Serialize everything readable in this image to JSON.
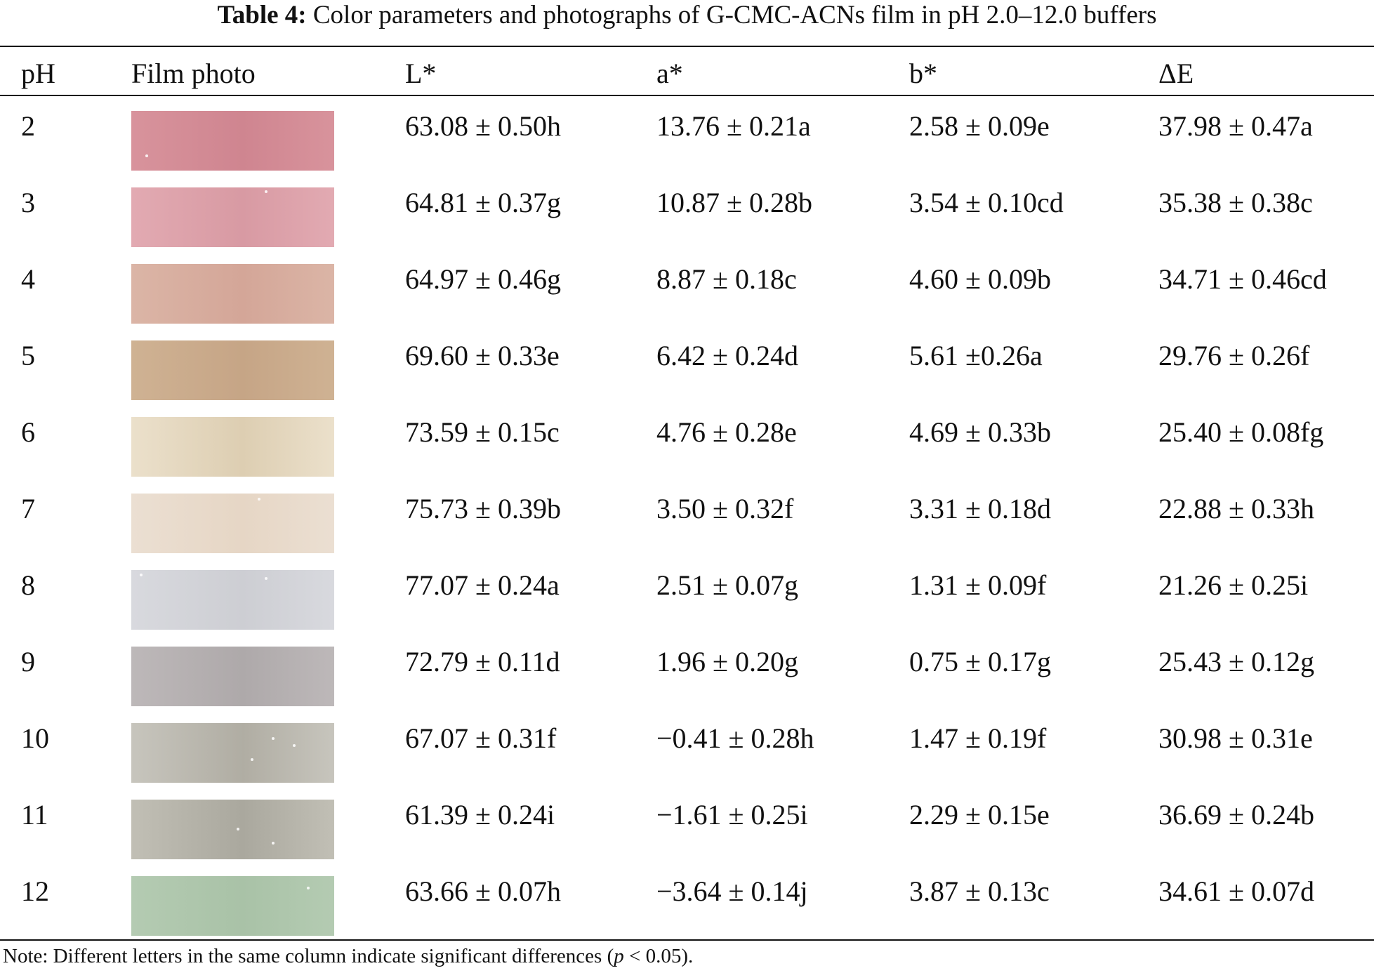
{
  "caption": {
    "label": "Table 4:",
    "text": "Color parameters and photographs of G-CMC-ACNs film in pH 2.0–12.0 buffers"
  },
  "headers": {
    "ph": "pH",
    "photo": "Film photo",
    "l": "L*",
    "a": "a*",
    "b": "b*",
    "de": "ΔE"
  },
  "rows": [
    {
      "ph": "2",
      "l": "63.08 ± 0.50h",
      "a": "13.76 ± 0.21a",
      "b": "2.58 ± 0.09e",
      "de": "37.98 ± 0.47a",
      "color": "#d8939c",
      "color2": "#cf8590"
    },
    {
      "ph": "3",
      "l": "64.81 ± 0.37g",
      "a": "10.87 ± 0.28b",
      "b": "3.54 ± 0.10cd",
      "de": "35.38 ± 0.38c",
      "color": "#e2aab2",
      "color2": "#d89aa3"
    },
    {
      "ph": "4",
      "l": "64.97 ± 0.46g",
      "a": "8.87 ± 0.18c",
      "b": "4.60 ± 0.09b",
      "de": "34.71 ± 0.46cd",
      "color": "#dbb5a6",
      "color2": "#d4a698"
    },
    {
      "ph": "5",
      "l": "69.60 ± 0.33e",
      "a": "6.42 ± 0.24d",
      "b": "5.61 ±0.26a",
      "de": "29.76 ± 0.26f",
      "color": "#cfb293",
      "color2": "#c6a586"
    },
    {
      "ph": "6",
      "l": "73.59 ± 0.15c",
      "a": "4.76 ± 0.28e",
      "b": "4.69 ± 0.33b",
      "de": "25.40 ± 0.08fg",
      "color": "#ebe0cb",
      "color2": "#ddceb2"
    },
    {
      "ph": "7",
      "l": "75.73 ± 0.39b",
      "a": "3.50 ± 0.32f",
      "b": "3.31 ± 0.18d",
      "de": "22.88 ± 0.33h",
      "color": "#ebdfd2",
      "color2": "#e6d6c5"
    },
    {
      "ph": "8",
      "l": "77.07 ± 0.24a",
      "a": "2.51 ± 0.07g",
      "b": "1.31 ± 0.09f",
      "de": "21.26 ± 0.25i",
      "color": "#d8d9de",
      "color2": "#cdced3"
    },
    {
      "ph": "9",
      "l": "72.79 ± 0.11d",
      "a": "1.96 ± 0.20g",
      "b": "0.75 ± 0.17g",
      "de": "25.43 ± 0.12g",
      "color": "#bdb8b9",
      "color2": "#aea9aa"
    },
    {
      "ph": "10",
      "l": "67.07 ± 0.31f",
      "a": "−0.41 ± 0.28h",
      "b": "1.47 ± 0.19f",
      "de": "30.98 ± 0.31e",
      "color": "#c7c5bd",
      "color2": "#b0ada3"
    },
    {
      "ph": "11",
      "l": "61.39 ± 0.24i",
      "a": "−1.61 ± 0.25i",
      "b": "2.29 ± 0.15e",
      "de": "36.69 ± 0.24b",
      "color": "#c1bfb5",
      "color2": "#aaa89e"
    },
    {
      "ph": "12",
      "l": "63.66 ± 0.07h",
      "a": "−3.64 ± 0.14j",
      "b": "3.87 ± 0.13c",
      "de": "34.61 ± 0.07d",
      "color": "#b4cbb2",
      "color2": "#a9c2a7"
    }
  ],
  "note": {
    "prefix": "Note: Different letters in the same column indicate significant differences (",
    "p": "p",
    "suffix": " < 0.05)."
  }
}
